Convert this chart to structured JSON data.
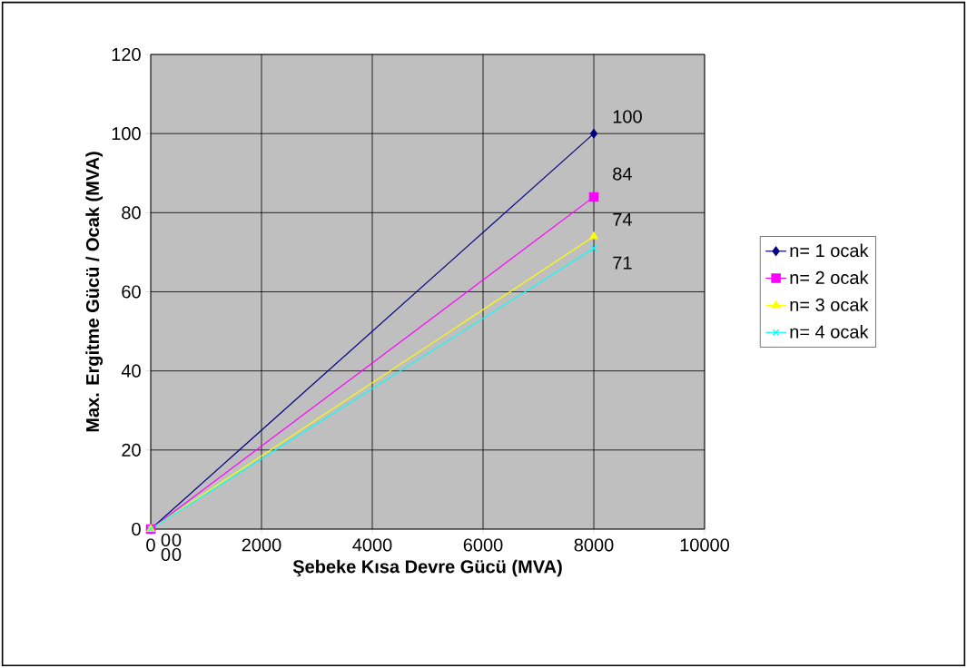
{
  "chart_data": {
    "type": "line",
    "xlabel": "Şebeke Kısa Devre Gücü (MVA)",
    "ylabel": "Max. Ergitme Gücü / Ocak (MVA)",
    "x": [
      0,
      8000
    ],
    "series": [
      {
        "name": "n= 1 ocak",
        "color": "#000080",
        "values": [
          0,
          100
        ],
        "marker": "diamond"
      },
      {
        "name": "n= 2 ocak",
        "color": "#ff00ff",
        "values": [
          0,
          84
        ],
        "marker": "square"
      },
      {
        "name": "n= 3 ocak",
        "color": "#ffff00",
        "values": [
          0,
          74
        ],
        "marker": "triangle"
      },
      {
        "name": "n= 4 ocak",
        "color": "#00ffff",
        "values": [
          0,
          71
        ],
        "marker": "cross"
      }
    ],
    "xlim": [
      0,
      10000
    ],
    "xticks": [
      0,
      2000,
      4000,
      6000,
      8000,
      10000
    ],
    "ylim": [
      0,
      120
    ],
    "yticks": [
      0,
      20,
      40,
      60,
      80,
      100,
      120
    ],
    "grid": true,
    "legend": "right",
    "data_labels": true
  }
}
